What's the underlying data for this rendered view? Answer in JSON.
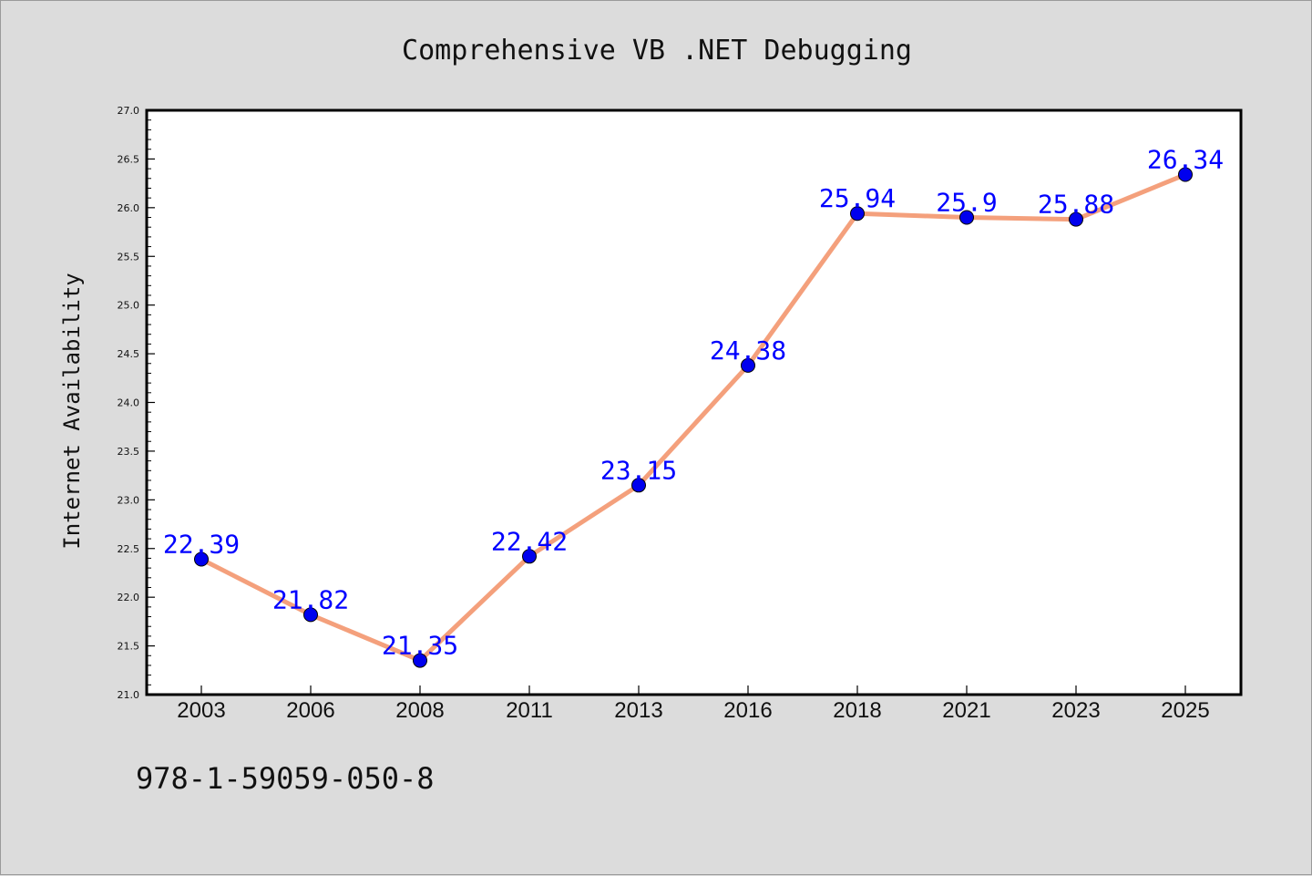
{
  "chart_data": {
    "type": "line",
    "title": "Comprehensive VB .NET Debugging",
    "xlabel": "",
    "ylabel": "Internet Availability",
    "categories": [
      "2003",
      "2006",
      "2008",
      "2011",
      "2013",
      "2016",
      "2018",
      "2021",
      "2023",
      "2025"
    ],
    "series": [
      {
        "values": [
          22.39,
          21.82,
          21.35,
          22.42,
          23.15,
          24.38,
          25.94,
          25.9,
          25.88,
          26.34
        ],
        "labels": [
          "22.39",
          "21.82",
          "21.35",
          "22.42",
          "23.15",
          "24.38",
          "25.94",
          "25.9",
          "25.88",
          "26.34"
        ],
        "line_color": "#f4a07c",
        "marker_color": "#0000ee",
        "label_color": "#0000ff"
      }
    ],
    "ylim": [
      21.0,
      27.0
    ],
    "yticks": [
      "21.0",
      "21.5",
      "22.0",
      "22.5",
      "23.0",
      "23.5",
      "24.0",
      "24.5",
      "25.0",
      "25.5",
      "26.0",
      "26.5",
      "27.0"
    ],
    "grid": false,
    "legend": "none"
  },
  "annotation": "978-1-59059-050-8",
  "colors": {
    "background": "#dcdcdc",
    "plot_background": "#ffffff",
    "axis": "#000000",
    "text": "#111111"
  }
}
